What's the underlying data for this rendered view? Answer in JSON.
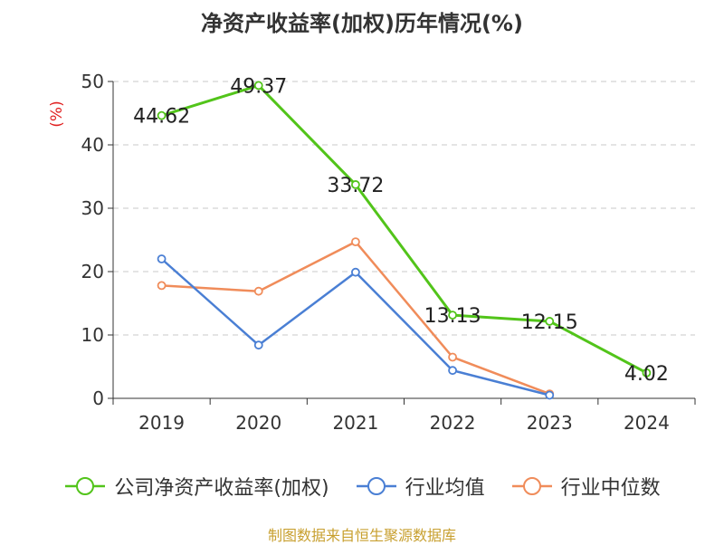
{
  "title": "净资产收益率(加权)历年情况(%)",
  "source_note": "制图数据来自恒生聚源数据库",
  "chart_data": {
    "type": "line",
    "title": "净资产收益率(加权)历年情况(%)",
    "xlabel": "",
    "ylabel": "(%)",
    "ylim": [
      0,
      50
    ],
    "yticks": [
      0,
      10,
      20,
      30,
      40,
      50
    ],
    "grid": true,
    "legend_position": "bottom",
    "categories": [
      "2019",
      "2020",
      "2021",
      "2022",
      "2023",
      "2024"
    ],
    "series": [
      {
        "name": "公司净资产收益率(加权)",
        "color": "#52c41a",
        "values": [
          44.62,
          49.37,
          33.72,
          13.13,
          12.15,
          4.02
        ],
        "labels": [
          "44.62",
          "49.37",
          "33.72",
          "13.13",
          "12.15",
          "4.02"
        ]
      },
      {
        "name": "行业均值",
        "color": "#4a7fd4",
        "values": [
          22.0,
          8.4,
          19.9,
          4.4,
          0.5,
          null
        ]
      },
      {
        "name": "行业中位数",
        "color": "#f08c5a",
        "values": [
          17.8,
          16.9,
          24.7,
          6.5,
          0.7,
          null
        ]
      }
    ]
  }
}
